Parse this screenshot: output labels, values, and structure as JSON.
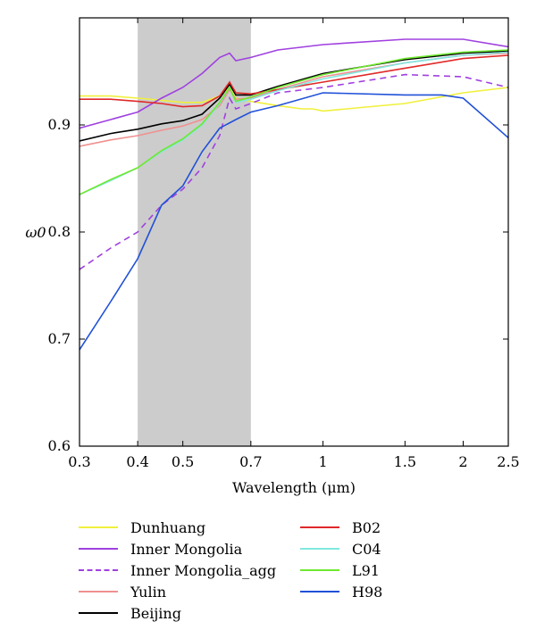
{
  "chart_data": {
    "type": "line",
    "xlabel": "Wavelength (μm)",
    "ylabel": "ω0",
    "x_scale": "log",
    "xlim": [
      0.3,
      2.5
    ],
    "ylim": [
      0.6,
      1.0
    ],
    "x_ticks": [
      0.3,
      0.4,
      0.5,
      0.7,
      1,
      1.5,
      2,
      2.5
    ],
    "x_tick_labels": [
      "0.3",
      "0.4",
      "0.5",
      "0.7",
      "1",
      "1.5",
      "2",
      "2.5"
    ],
    "y_ticks": [
      0.6,
      0.7,
      0.8,
      0.9
    ],
    "y_tick_labels": [
      "0.6",
      "0.7",
      "0.8",
      "0.9"
    ],
    "shaded_band": {
      "x": [
        0.4,
        0.7
      ],
      "color": "#cccccc"
    },
    "grid": false,
    "legend_position": "bottom",
    "series": [
      {
        "name": "Dunhuang",
        "color": "#f0f03c",
        "dash": false,
        "x": [
          0.3,
          0.35,
          0.4,
          0.45,
          0.5,
          0.55,
          0.6,
          0.63,
          0.65,
          0.7,
          0.8,
          0.9,
          0.95,
          1.0,
          1.5,
          2.0,
          2.5
        ],
        "y": [
          0.927,
          0.927,
          0.925,
          0.923,
          0.921,
          0.921,
          0.927,
          0.935,
          0.925,
          0.922,
          0.918,
          0.915,
          0.915,
          0.913,
          0.92,
          0.93,
          0.935
        ]
      },
      {
        "name": "Inner Mongolia",
        "color": "#a040e0",
        "dash": false,
        "x": [
          0.3,
          0.35,
          0.4,
          0.45,
          0.5,
          0.55,
          0.6,
          0.63,
          0.65,
          0.7,
          0.8,
          1.0,
          1.5,
          2.0,
          2.5
        ],
        "y": [
          0.897,
          0.905,
          0.912,
          0.925,
          0.935,
          0.948,
          0.963,
          0.967,
          0.96,
          0.963,
          0.97,
          0.975,
          0.98,
          0.98,
          0.973
        ]
      },
      {
        "name": "Inner Mongolia_agg",
        "color": "#a040e0",
        "dash": true,
        "x": [
          0.3,
          0.35,
          0.4,
          0.45,
          0.5,
          0.55,
          0.6,
          0.63,
          0.65,
          0.7,
          0.8,
          1.0,
          1.5,
          2.0,
          2.5
        ],
        "y": [
          0.765,
          0.785,
          0.8,
          0.825,
          0.84,
          0.86,
          0.89,
          0.925,
          0.915,
          0.92,
          0.93,
          0.935,
          0.947,
          0.945,
          0.935
        ]
      },
      {
        "name": "Yulin",
        "color": "#f09090",
        "dash": false,
        "x": [
          0.3,
          0.35,
          0.4,
          0.45,
          0.5,
          0.55,
          0.6,
          0.63,
          0.65,
          0.7,
          0.8,
          1.0,
          1.5,
          2.0,
          2.5
        ],
        "y": [
          0.88,
          0.886,
          0.89,
          0.895,
          0.899,
          0.905,
          0.918,
          0.933,
          0.924,
          0.925,
          0.933,
          0.945,
          0.958,
          0.965,
          0.967
        ]
      },
      {
        "name": "Beijing",
        "color": "#000000",
        "dash": false,
        "x": [
          0.3,
          0.35,
          0.4,
          0.45,
          0.5,
          0.55,
          0.6,
          0.63,
          0.65,
          0.7,
          0.8,
          1.0,
          1.5,
          2.0,
          2.5
        ],
        "y": [
          0.885,
          0.892,
          0.896,
          0.901,
          0.904,
          0.91,
          0.925,
          0.938,
          0.928,
          0.928,
          0.936,
          0.948,
          0.961,
          0.967,
          0.969
        ]
      },
      {
        "name": "B02",
        "color": "#e02828",
        "dash": false,
        "x": [
          0.3,
          0.35,
          0.4,
          0.45,
          0.5,
          0.55,
          0.6,
          0.63,
          0.65,
          0.7,
          0.8,
          1.0,
          1.5,
          2.0,
          2.5
        ],
        "y": [
          0.924,
          0.924,
          0.922,
          0.92,
          0.917,
          0.918,
          0.927,
          0.94,
          0.93,
          0.929,
          0.933,
          0.94,
          0.953,
          0.962,
          0.965
        ]
      },
      {
        "name": "C04",
        "color": "#80e8e0",
        "dash": false,
        "x": [
          0.3,
          0.35,
          0.4,
          0.45,
          0.5,
          0.55,
          0.6,
          0.63,
          0.65,
          0.7,
          0.8,
          1.0,
          1.5,
          2.0,
          2.5
        ],
        "y": [
          0.835,
          0.848,
          0.86,
          0.875,
          0.886,
          0.9,
          0.92,
          0.935,
          0.921,
          0.924,
          0.932,
          0.943,
          0.958,
          0.965,
          0.968
        ]
      },
      {
        "name": "L91",
        "color": "#70e830",
        "dash": false,
        "x": [
          0.3,
          0.35,
          0.4,
          0.45,
          0.5,
          0.55,
          0.6,
          0.63,
          0.65,
          0.7,
          0.8,
          1.0,
          1.5,
          2.0,
          2.5
        ],
        "y": [
          0.835,
          0.849,
          0.86,
          0.876,
          0.887,
          0.901,
          0.921,
          0.935,
          0.922,
          0.926,
          0.935,
          0.947,
          0.962,
          0.968,
          0.97
        ]
      },
      {
        "name": "H98",
        "color": "#2050d8",
        "dash": false,
        "x": [
          0.3,
          0.35,
          0.4,
          0.45,
          0.5,
          0.55,
          0.6,
          0.65,
          0.7,
          0.8,
          1.0,
          1.5,
          1.8,
          2.0,
          2.5
        ],
        "y": [
          0.69,
          0.735,
          0.775,
          0.825,
          0.843,
          0.875,
          0.897,
          0.905,
          0.912,
          0.918,
          0.93,
          0.928,
          0.928,
          0.925,
          0.888
        ]
      }
    ]
  }
}
